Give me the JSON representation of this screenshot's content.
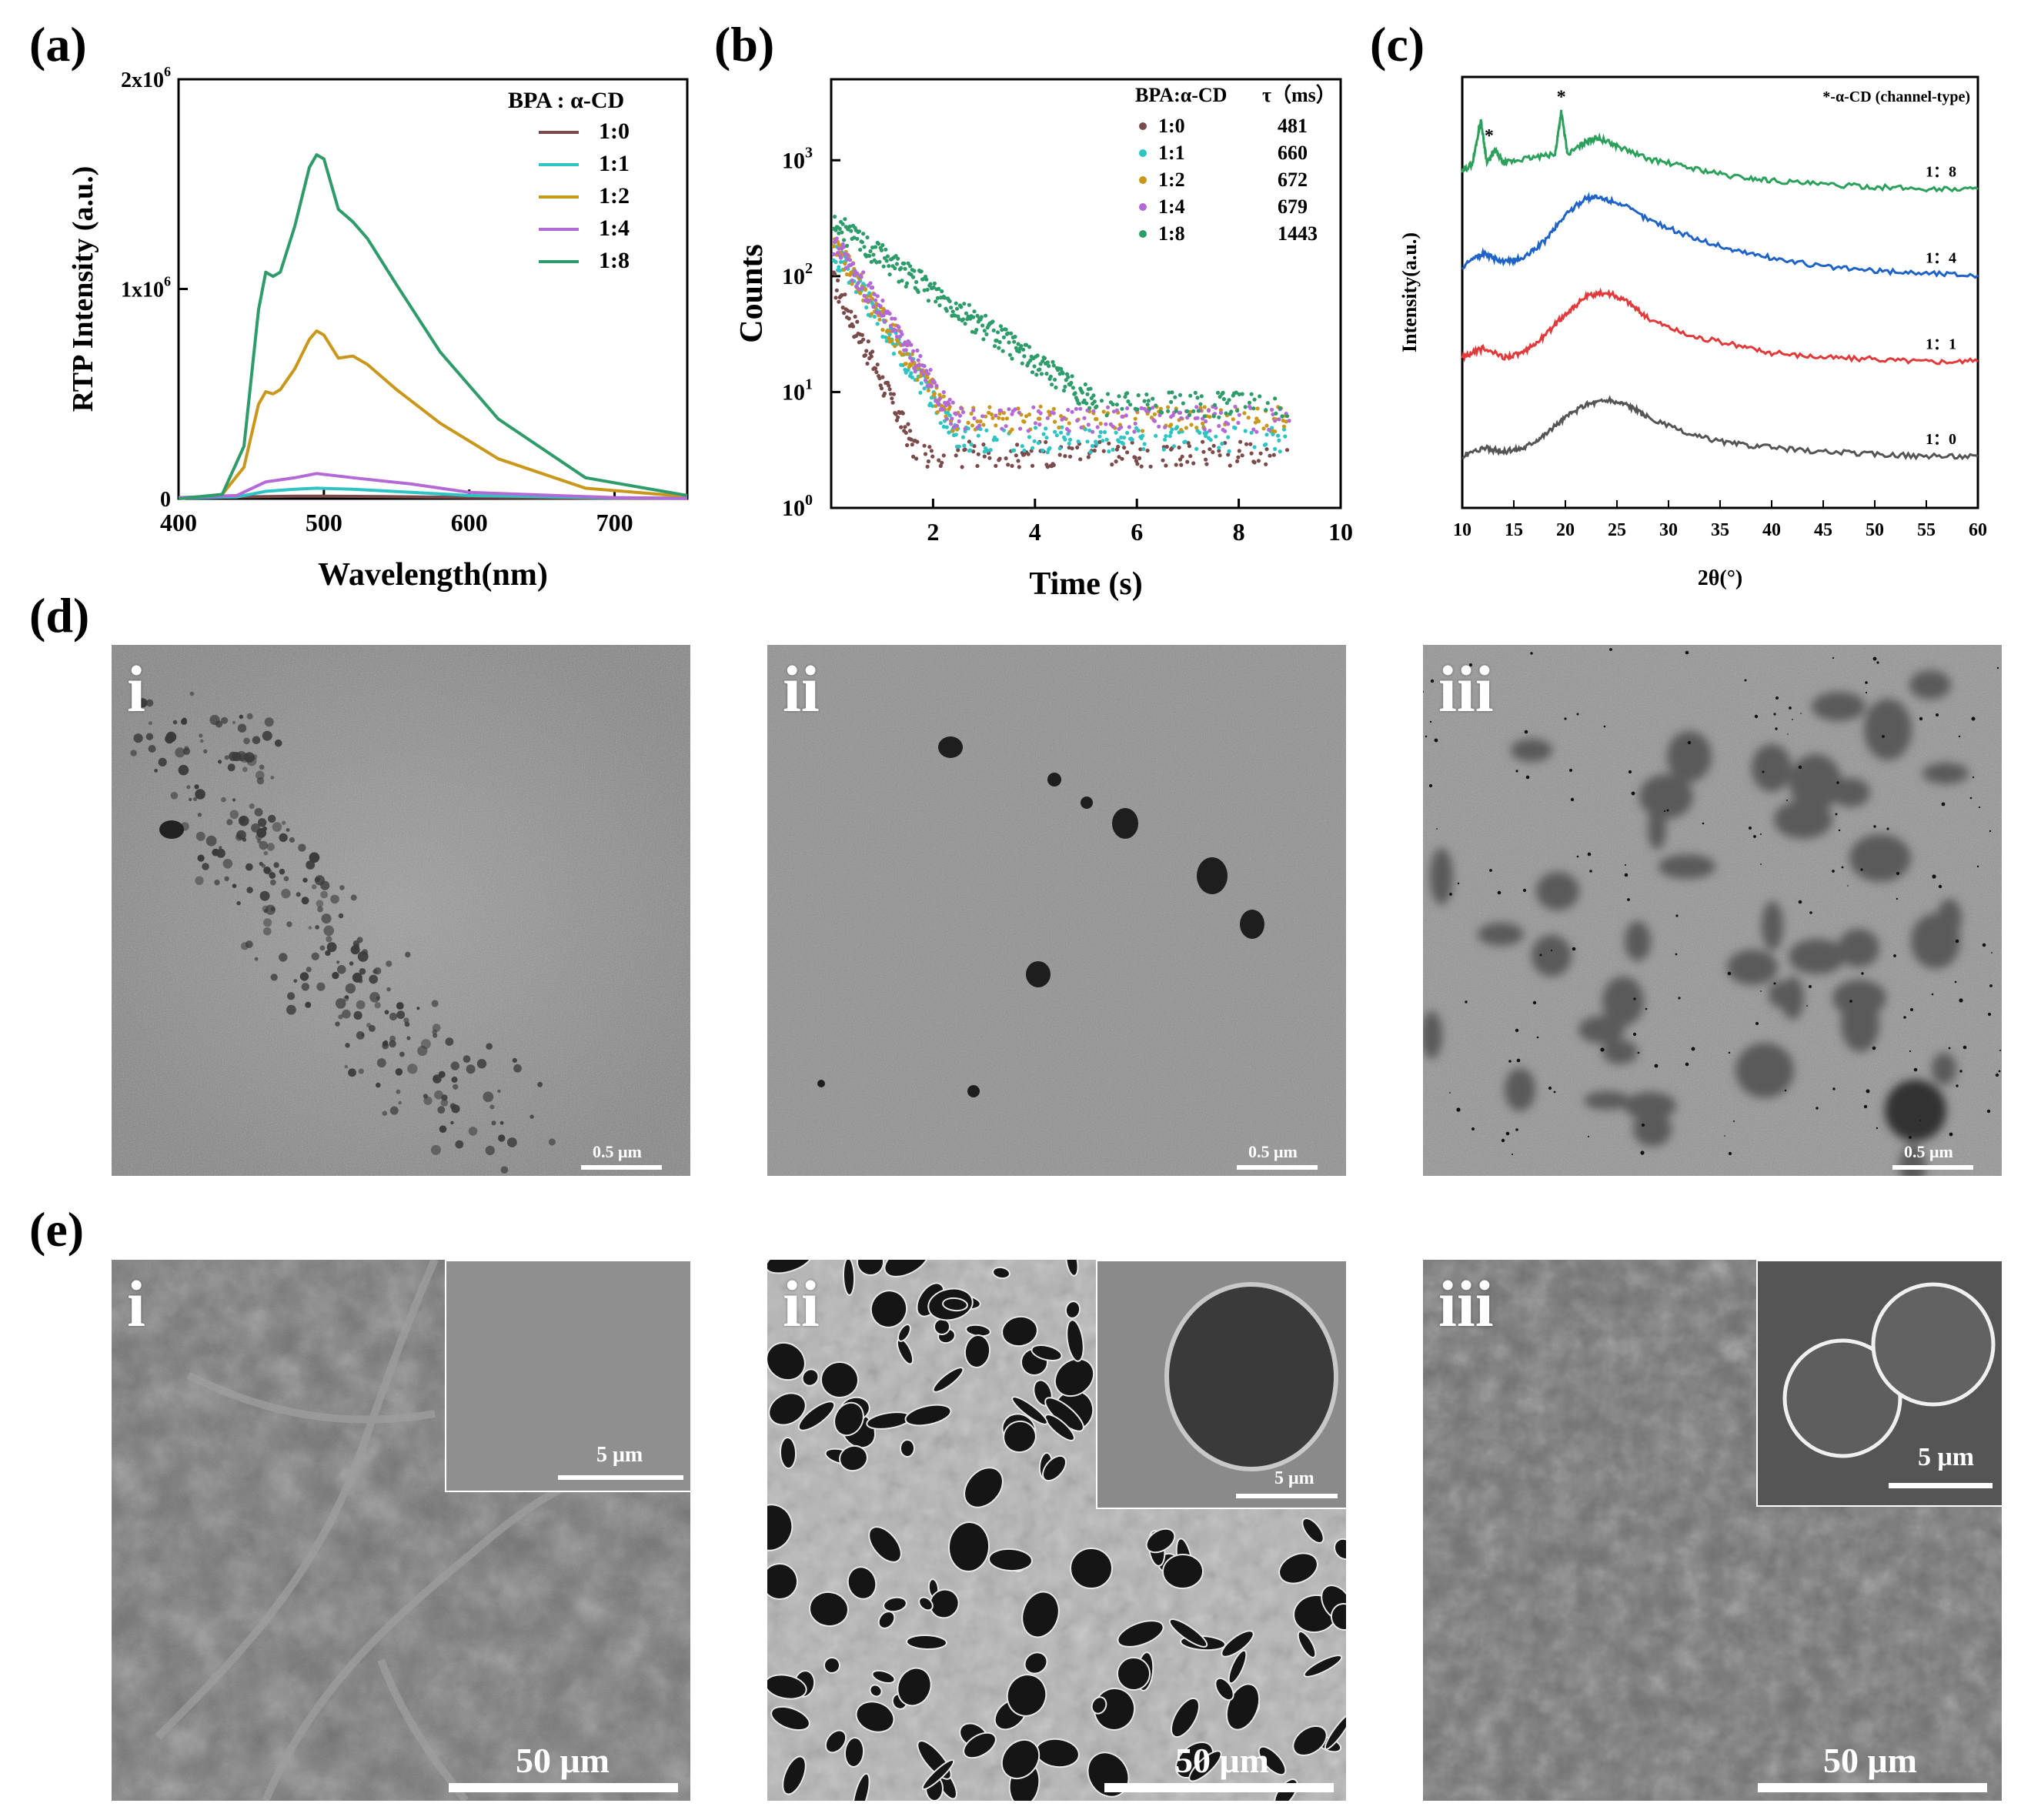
{
  "panel_labels": {
    "a": "(a)",
    "b": "(b)",
    "c": "(c)",
    "d": "(d)",
    "e": "(e)"
  },
  "colors": {
    "r10": "#7b4a4a",
    "r11": "#2ec4c4",
    "r12": "#c9971a",
    "r14": "#b46ad6",
    "r18": "#2e9c6a",
    "xrd_18": "#2aa05a",
    "xrd_14": "#1f63c8",
    "xrd_11": "#e23a3a",
    "xrd_10": "#555555"
  },
  "chart_a": {
    "type": "line",
    "ylabel": "RTP Intensity (a.u.)",
    "xlabel": "Wavelength(nm)",
    "xlim": [
      400,
      750
    ],
    "ylim": [
      0,
      2000000
    ],
    "xticks": [
      "400",
      "500",
      "600",
      "700"
    ],
    "yticks": [
      {
        "label": "0",
        "sup": ""
      },
      {
        "label": "1x10",
        "sup": "6"
      },
      {
        "label": "2x10",
        "sup": "6"
      }
    ],
    "legend_title": "BPA : α-CD",
    "legend": [
      "1:0",
      "1:1",
      "1:2",
      "1:4",
      "1:8"
    ]
  },
  "chart_b": {
    "type": "scatter",
    "ylabel": "Counts",
    "xlabel": "Time (s)",
    "xlim": [
      0,
      10
    ],
    "ylim": [
      1,
      5000
    ],
    "yscale": "log",
    "xticks": [
      "2",
      "4",
      "6",
      "8",
      "10"
    ],
    "yticks": [
      {
        "label": "10",
        "sup": "0"
      },
      {
        "label": "10",
        "sup": "1"
      },
      {
        "label": "10",
        "sup": "2"
      },
      {
        "label": "10",
        "sup": "3"
      }
    ],
    "legend_col1": "BPA:α-CD",
    "legend_col2": "τ（ms）",
    "legend": [
      {
        "ratio": "1:0",
        "tau": "481"
      },
      {
        "ratio": "1:1",
        "tau": "660"
      },
      {
        "ratio": "1:2",
        "tau": "672"
      },
      {
        "ratio": "1:4",
        "tau": "679"
      },
      {
        "ratio": "1:8",
        "tau": "1443"
      }
    ]
  },
  "chart_c": {
    "type": "line",
    "ylabel": "Intensity(a.u.)",
    "xlabel": "2θ(°)",
    "xlim": [
      10,
      60
    ],
    "xticks": [
      "10",
      "15",
      "20",
      "25",
      "30",
      "35",
      "40",
      "45",
      "50",
      "55",
      "60"
    ],
    "legend_note": "*-α-CD (channel-type)",
    "curve_labels": [
      "1：8",
      "1：4",
      "1：1",
      "1：0"
    ],
    "star": "*"
  },
  "chart_data": [
    {
      "type": "line",
      "title": "",
      "xlabel": "Wavelength(nm)",
      "ylabel": "RTP Intensity (a.u.)",
      "xlim": [
        400,
        750
      ],
      "ylim": [
        0,
        2000000
      ],
      "series": [
        {
          "name": "1:0",
          "x": [
            400,
            440,
            460,
            480,
            500,
            540,
            600,
            700,
            750
          ],
          "y": [
            5000,
            8000,
            10000,
            12000,
            12000,
            10000,
            6000,
            2000,
            1000
          ]
        },
        {
          "name": "1:1",
          "x": [
            400,
            440,
            460,
            480,
            495,
            520,
            560,
            600,
            700,
            750
          ],
          "y": [
            3000,
            8000,
            35000,
            45000,
            50000,
            45000,
            30000,
            15000,
            4000,
            2000
          ]
        },
        {
          "name": "1:2",
          "x": [
            400,
            430,
            445,
            455,
            460,
            465,
            470,
            480,
            490,
            495,
            500,
            510,
            520,
            530,
            550,
            580,
            620,
            680,
            750
          ],
          "y": [
            0,
            20000,
            150000,
            450000,
            510000,
            500000,
            520000,
            620000,
            760000,
            800000,
            780000,
            670000,
            680000,
            640000,
            520000,
            360000,
            190000,
            50000,
            10000
          ]
        },
        {
          "name": "1:4",
          "x": [
            400,
            440,
            460,
            480,
            495,
            520,
            560,
            600,
            700,
            750
          ],
          "y": [
            5000,
            15000,
            80000,
            100000,
            120000,
            100000,
            70000,
            30000,
            5000,
            2000
          ]
        },
        {
          "name": "1:8",
          "x": [
            400,
            430,
            445,
            455,
            460,
            465,
            470,
            480,
            490,
            495,
            500,
            510,
            520,
            530,
            550,
            580,
            620,
            680,
            750
          ],
          "y": [
            0,
            20000,
            250000,
            900000,
            1080000,
            1060000,
            1080000,
            1300000,
            1580000,
            1640000,
            1620000,
            1380000,
            1320000,
            1240000,
            1020000,
            700000,
            380000,
            100000,
            15000
          ]
        }
      ]
    },
    {
      "type": "scatter",
      "title": "",
      "xlabel": "Time (s)",
      "ylabel": "Counts",
      "xlim": [
        0,
        10
      ],
      "ylim": [
        1,
        5000
      ],
      "yscale": "log",
      "series": [
        {
          "name": "1:0",
          "a0": 100,
          "tau": 0.481,
          "floor": 3
        },
        {
          "name": "1:1",
          "a0": 180,
          "tau": 0.66,
          "floor": 4
        },
        {
          "name": "1:2",
          "a0": 200,
          "tau": 0.672,
          "floor": 6
        },
        {
          "name": "1:4",
          "a0": 220,
          "tau": 0.679,
          "floor": 6
        },
        {
          "name": "1:8",
          "a0": 300,
          "tau": 1.443,
          "floor": 8
        }
      ]
    },
    {
      "type": "line",
      "title": "",
      "xlabel": "2θ(°)",
      "ylabel": "Intensity(a.u.)",
      "xlim": [
        10,
        60
      ],
      "series": [
        {
          "name": "1：8",
          "x": [
            10,
            11,
            11.8,
            12.4,
            13.2,
            14,
            16,
            19,
            19.6,
            20.2,
            22,
            23,
            25,
            28,
            32,
            36,
            40,
            45,
            50,
            55,
            60
          ],
          "y": [
            0.78,
            0.8,
            0.9,
            0.8,
            0.83,
            0.8,
            0.81,
            0.82,
            0.92,
            0.82,
            0.85,
            0.86,
            0.84,
            0.81,
            0.79,
            0.77,
            0.76,
            0.75,
            0.745,
            0.74,
            0.74
          ]
        },
        {
          "name": "1：4",
          "x": [
            10,
            12,
            14,
            16,
            18,
            20,
            22,
            23,
            25,
            28,
            32,
            36,
            40,
            45,
            50,
            55,
            60
          ],
          "y": [
            0.56,
            0.59,
            0.57,
            0.58,
            0.62,
            0.68,
            0.72,
            0.72,
            0.71,
            0.67,
            0.63,
            0.6,
            0.58,
            0.56,
            0.55,
            0.545,
            0.54
          ]
        },
        {
          "name": "1：1",
          "x": [
            10,
            12,
            14,
            16,
            18,
            20,
            22,
            24,
            26,
            28,
            32,
            36,
            40,
            45,
            50,
            55,
            60
          ],
          "y": [
            0.35,
            0.37,
            0.35,
            0.36,
            0.4,
            0.45,
            0.49,
            0.5,
            0.48,
            0.44,
            0.4,
            0.38,
            0.36,
            0.35,
            0.345,
            0.34,
            0.34
          ]
        },
        {
          "name": "1：0",
          "x": [
            10,
            12,
            14,
            16,
            18,
            20,
            22,
            24,
            26,
            28,
            32,
            36,
            40,
            45,
            50,
            55,
            60
          ],
          "y": [
            0.12,
            0.14,
            0.13,
            0.14,
            0.17,
            0.21,
            0.24,
            0.25,
            0.24,
            0.21,
            0.17,
            0.15,
            0.14,
            0.13,
            0.125,
            0.12,
            0.12
          ]
        }
      ]
    }
  ],
  "tem": {
    "i": {
      "label": "i",
      "scale": "0.5 μm"
    },
    "ii": {
      "label": "ii",
      "scale": "0.5 μm"
    },
    "iii": {
      "label": "iii",
      "scale": "0.5 μm"
    }
  },
  "sem": {
    "i": {
      "label": "i",
      "scale": "50 μm",
      "inset_scale": "5 μm"
    },
    "ii": {
      "label": "ii",
      "scale": "50 μm",
      "inset_scale": "5 μm"
    },
    "iii": {
      "label": "iii",
      "scale": "50 μm",
      "inset_scale": "5 μm"
    }
  }
}
